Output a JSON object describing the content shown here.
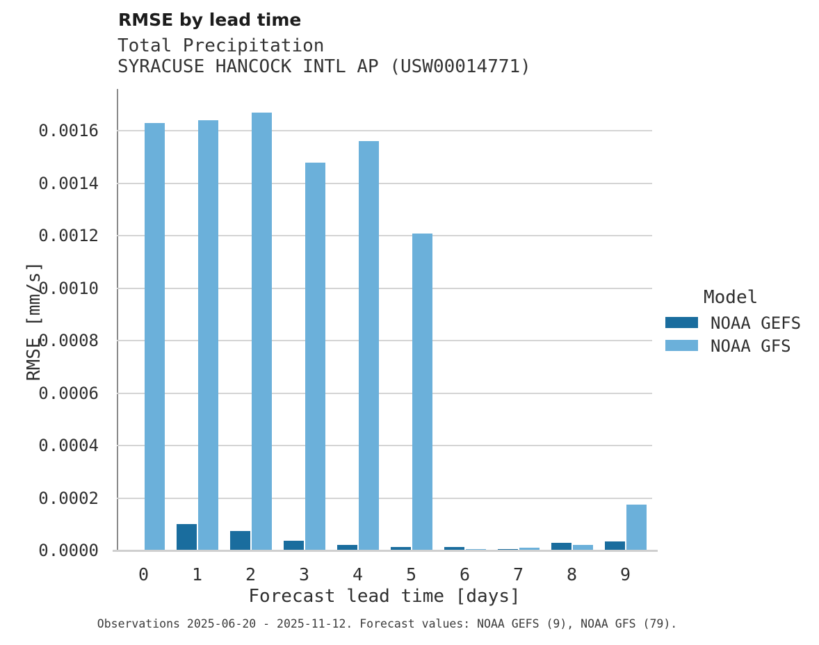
{
  "header": {
    "title": "RMSE by lead time",
    "subtitle_line1": "Total Precipitation",
    "subtitle_line2": "SYRACUSE HANCOCK INTL AP (USW00014771)"
  },
  "legend": {
    "title": "Model",
    "entries": [
      {
        "label": "NOAA GEFS",
        "color": "#1a6d9e"
      },
      {
        "label": "NOAA GFS",
        "color": "#6bb0da"
      }
    ]
  },
  "caption": "Observations 2025-06-20 - 2025-11-12. Forecast values: NOAA GEFS (9), NOAA GFS (79).",
  "chart_data": {
    "type": "bar",
    "title": "RMSE by lead time",
    "subtitle": [
      "Total Precipitation",
      "SYRACUSE HANCOCK INTL AP (USW00014771)"
    ],
    "categories": [
      "0",
      "1",
      "2",
      "3",
      "4",
      "5",
      "6",
      "7",
      "8",
      "9"
    ],
    "series": [
      {
        "name": "NOAA GEFS",
        "color": "#1a6d9e",
        "values": [
          0,
          0.0001,
          7.5e-05,
          3.7e-05,
          2.1e-05,
          1.3e-05,
          1.3e-05,
          5e-06,
          2.8e-05,
          3.5e-05
        ]
      },
      {
        "name": "NOAA GFS",
        "color": "#6bb0da",
        "values": [
          0.00163,
          0.00164,
          0.00167,
          0.00148,
          0.00156,
          0.00121,
          5e-06,
          1e-05,
          2e-05,
          0.000175
        ]
      }
    ],
    "xlabel": "Forecast lead time [days]",
    "ylabel": "RMSE [mm/s]",
    "ylim": [
      0,
      0.00176
    ],
    "yticks": [
      0.0,
      0.0002,
      0.0004,
      0.0006,
      0.0008,
      0.001,
      0.0012,
      0.0014,
      0.0016
    ],
    "ytick_decimals": 4,
    "grid": true,
    "legend_title": "Model",
    "legend_position": "right",
    "colors": {
      "gridline": "#d4d4d4",
      "axis_spine": "#8a8a8a",
      "baseline": "#cfcfcf"
    }
  }
}
